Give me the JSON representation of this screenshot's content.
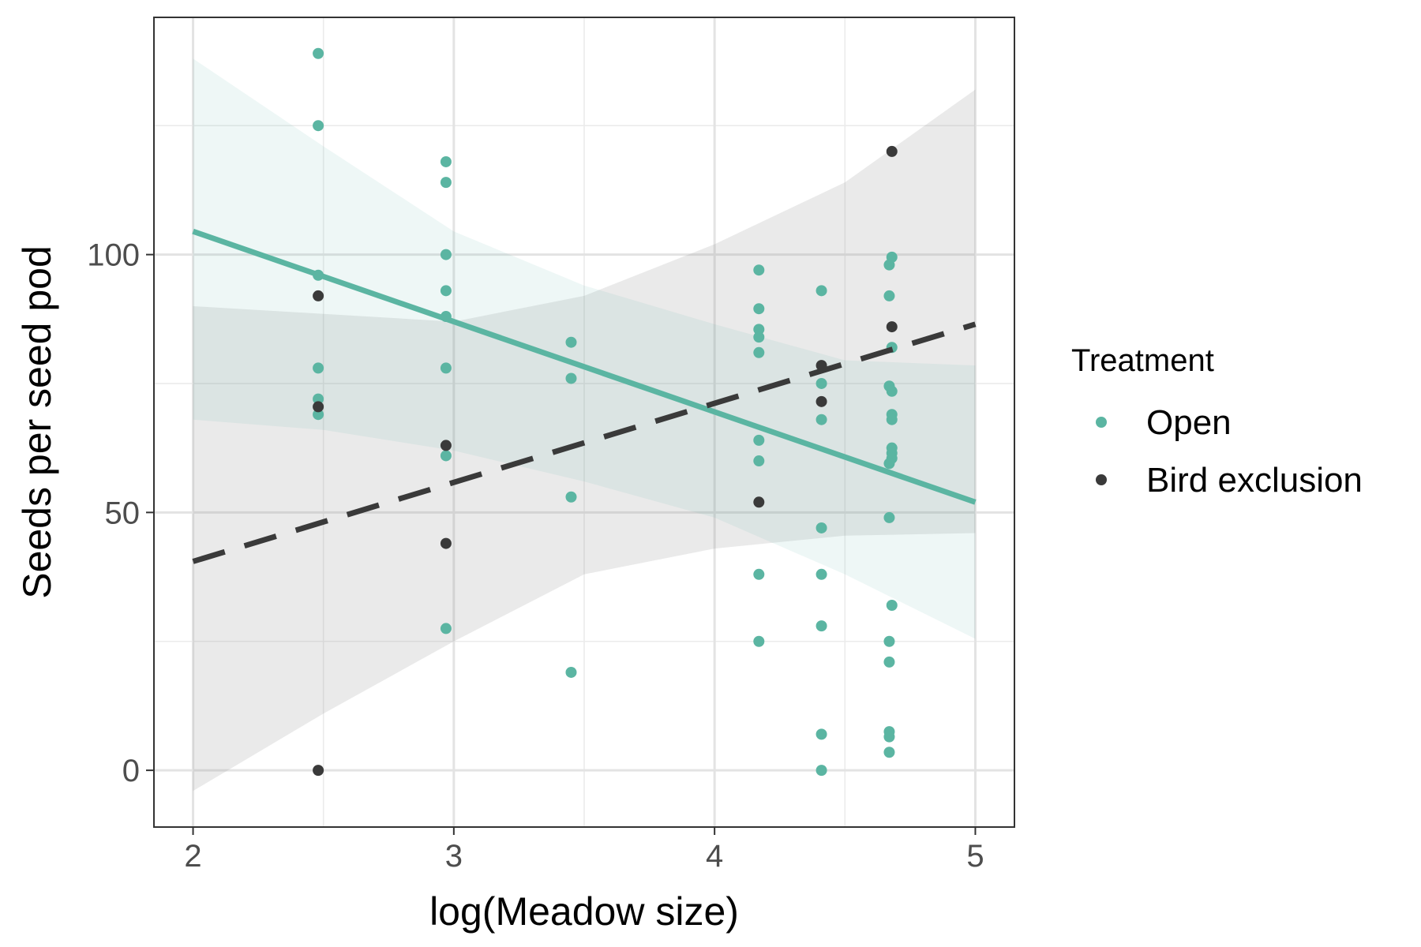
{
  "chart_data": {
    "type": "scatter",
    "xlabel": "log(Meadow size)",
    "ylabel": "Seeds per seed pod",
    "xlim": [
      1.85,
      5.15
    ],
    "ylim": [
      -11,
      146
    ],
    "x_ticks": [
      2,
      3,
      4,
      5
    ],
    "x_tick_labels": [
      "2",
      "3",
      "4",
      "5"
    ],
    "y_ticks": [
      0,
      50,
      100
    ],
    "y_tick_labels": [
      "0",
      "50",
      "100"
    ],
    "grid": true,
    "legend": {
      "title": "Treatment",
      "placement": "right"
    },
    "series": [
      {
        "name": "Open",
        "color": "#5bb5a2",
        "points": [
          [
            2.48,
            139
          ],
          [
            2.48,
            125
          ],
          [
            2.48,
            96
          ],
          [
            2.48,
            78
          ],
          [
            2.48,
            72
          ],
          [
            2.48,
            69
          ],
          [
            2.97,
            118
          ],
          [
            2.97,
            114
          ],
          [
            2.97,
            100
          ],
          [
            2.97,
            93
          ],
          [
            2.97,
            88
          ],
          [
            2.97,
            78
          ],
          [
            2.97,
            61
          ],
          [
            2.97,
            27.5
          ],
          [
            3.45,
            83
          ],
          [
            3.45,
            76
          ],
          [
            3.45,
            53
          ],
          [
            3.45,
            19
          ],
          [
            4.17,
            97
          ],
          [
            4.17,
            89.5
          ],
          [
            4.17,
            85.5
          ],
          [
            4.17,
            84
          ],
          [
            4.17,
            81
          ],
          [
            4.17,
            64
          ],
          [
            4.17,
            60
          ],
          [
            4.17,
            38
          ],
          [
            4.17,
            25
          ],
          [
            4.41,
            93
          ],
          [
            4.41,
            75
          ],
          [
            4.41,
            68
          ],
          [
            4.41,
            47
          ],
          [
            4.41,
            38
          ],
          [
            4.41,
            28
          ],
          [
            4.41,
            7
          ],
          [
            4.41,
            0
          ],
          [
            4.67,
            98
          ],
          [
            4.67,
            92
          ],
          [
            4.68,
            99.5
          ],
          [
            4.68,
            82
          ],
          [
            4.67,
            74.5
          ],
          [
            4.68,
            73.5
          ],
          [
            4.68,
            69
          ],
          [
            4.68,
            68
          ],
          [
            4.68,
            62.5
          ],
          [
            4.68,
            61.5
          ],
          [
            4.68,
            60.5
          ],
          [
            4.67,
            59.5
          ],
          [
            4.67,
            49
          ],
          [
            4.68,
            32
          ],
          [
            4.67,
            25
          ],
          [
            4.67,
            21
          ],
          [
            4.67,
            7.5
          ],
          [
            4.67,
            6.5
          ],
          [
            4.67,
            3.5
          ]
        ],
        "fit": {
          "x": [
            2,
            5
          ],
          "y": [
            104.5,
            52
          ]
        },
        "ribbon": {
          "x": [
            2.0,
            2.5,
            3.0,
            3.5,
            4.0,
            4.5,
            5.0
          ],
          "lower": [
            68,
            66,
            62,
            56,
            49,
            38,
            25.5
          ],
          "upper": [
            138,
            121,
            104.5,
            94,
            86.5,
            79.5,
            78.5
          ]
        }
      },
      {
        "name": "Bird exclusion",
        "color": "#3a3a3a",
        "points": [
          [
            2.48,
            92
          ],
          [
            2.48,
            70.5
          ],
          [
            2.48,
            0
          ],
          [
            2.97,
            63
          ],
          [
            2.97,
            44
          ],
          [
            4.17,
            52
          ],
          [
            4.41,
            78.5
          ],
          [
            4.41,
            71.5
          ],
          [
            4.68,
            120
          ],
          [
            4.68,
            86
          ]
        ],
        "fit": {
          "x": [
            2,
            5
          ],
          "y": [
            40.5,
            86.5
          ]
        },
        "ribbon": {
          "x": [
            2.0,
            2.5,
            3.0,
            3.5,
            4.0,
            4.5,
            5.0
          ],
          "lower": [
            -4,
            11,
            25,
            38,
            43,
            45.5,
            46
          ],
          "upper": [
            90,
            88.5,
            87,
            92,
            102,
            114,
            132
          ]
        }
      }
    ]
  }
}
